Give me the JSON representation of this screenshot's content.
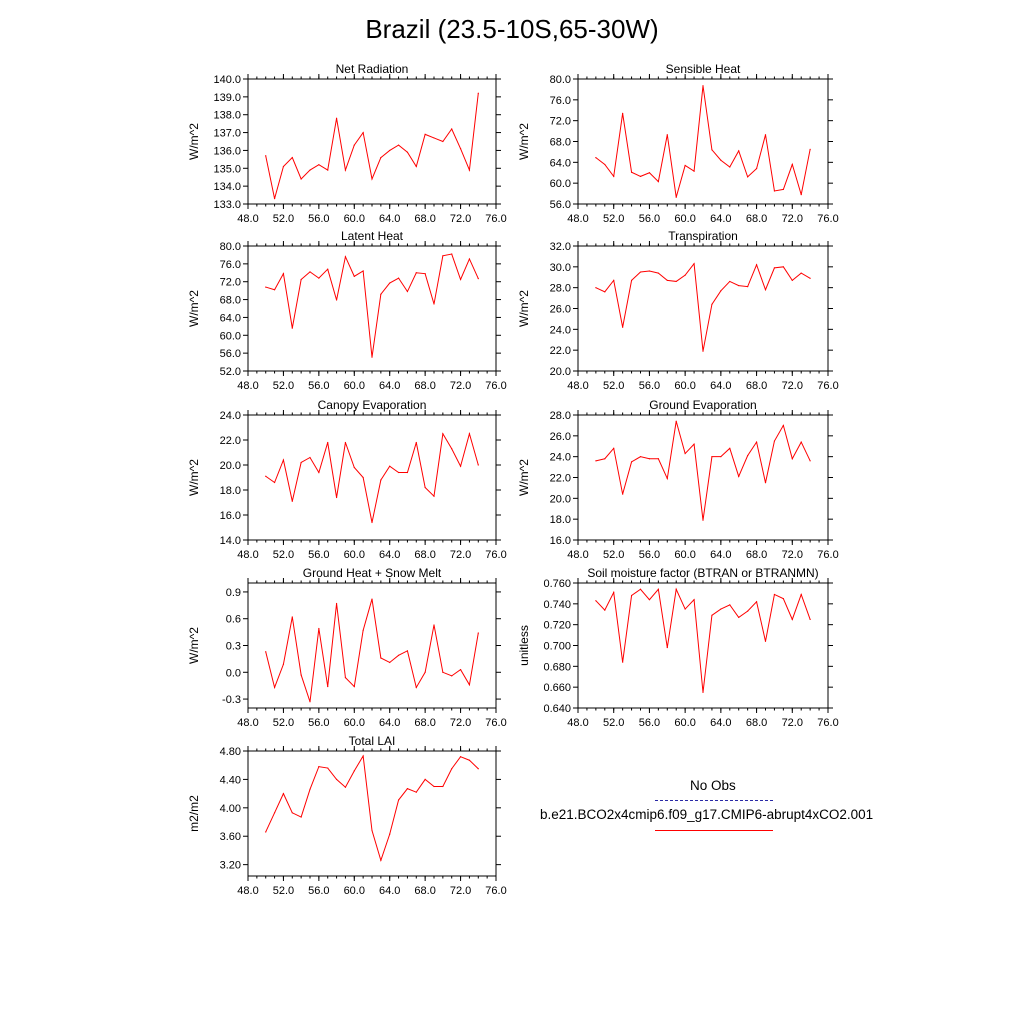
{
  "page": {
    "title": "Brazil (23.5-10S,65-30W)"
  },
  "colors": {
    "model_line": "#ff0000",
    "obs_line": "#2a2aa6",
    "axis": "#000000"
  },
  "legend": {
    "obs_label": "No Obs",
    "model_label": "b.e21.BCO2x4cmip6.f09_g17.CMIP6-abrupt4xCO2.001"
  },
  "chart_data": [
    {
      "type": "line",
      "title": "Net Radiation",
      "xlabel": "",
      "ylabel": "W/m^2",
      "xlim": [
        48,
        76
      ],
      "ylim": [
        133,
        140
      ],
      "xticks": [
        "48.0",
        "52.0",
        "56.0",
        "60.0",
        "64.0",
        "68.0",
        "72.0",
        "76.0"
      ],
      "yticks": [
        "133.0",
        "134.0",
        "135.0",
        "136.0",
        "137.0",
        "138.0",
        "139.0",
        "140.0"
      ],
      "x": [
        50,
        51,
        52,
        53,
        54,
        55,
        56,
        57,
        58,
        59,
        60,
        61,
        62,
        63,
        64,
        65,
        66,
        67,
        68,
        69,
        70,
        71,
        72,
        73,
        74
      ],
      "values": [
        135.7,
        133.3,
        135.1,
        135.6,
        134.4,
        134.9,
        135.2,
        134.9,
        137.8,
        134.9,
        136.3,
        137.0,
        134.4,
        135.6,
        136.0,
        136.3,
        135.9,
        135.1,
        136.9,
        136.7,
        136.5,
        137.2,
        136.1,
        134.9,
        139.2
      ]
    },
    {
      "type": "line",
      "title": "Sensible Heat",
      "xlabel": "",
      "ylabel": "W/m^2",
      "xlim": [
        48,
        76
      ],
      "ylim": [
        56,
        80
      ],
      "xticks": [
        "48.0",
        "52.0",
        "56.0",
        "60.0",
        "64.0",
        "68.0",
        "72.0",
        "76.0"
      ],
      "yticks": [
        "56.0",
        "60.0",
        "64.0",
        "68.0",
        "72.0",
        "76.0",
        "80.0"
      ],
      "x": [
        50,
        51,
        52,
        53,
        54,
        55,
        56,
        57,
        58,
        59,
        60,
        61,
        62,
        63,
        64,
        65,
        66,
        67,
        68,
        69,
        70,
        71,
        72,
        73,
        74
      ],
      "values": [
        64.9,
        63.6,
        61.3,
        73.4,
        62.1,
        61.3,
        62.0,
        60.3,
        69.3,
        57.3,
        63.4,
        62.3,
        78.7,
        66.4,
        64.4,
        63.1,
        66.2,
        61.2,
        62.8,
        69.3,
        58.5,
        58.8,
        63.6,
        57.8,
        66.5
      ]
    },
    {
      "type": "line",
      "title": "Latent Heat",
      "xlabel": "",
      "ylabel": "W/m^2",
      "xlim": [
        48,
        76
      ],
      "ylim": [
        52,
        80
      ],
      "xticks": [
        "48.0",
        "52.0",
        "56.0",
        "60.0",
        "64.0",
        "68.0",
        "72.0",
        "76.0"
      ],
      "yticks": [
        "52.0",
        "56.0",
        "60.0",
        "64.0",
        "68.0",
        "72.0",
        "76.0",
        "80.0"
      ],
      "x": [
        50,
        51,
        52,
        53,
        54,
        55,
        56,
        57,
        58,
        59,
        60,
        61,
        62,
        63,
        64,
        65,
        66,
        67,
        68,
        69,
        70,
        71,
        72,
        73,
        74
      ],
      "values": [
        70.8,
        70.2,
        73.8,
        61.6,
        72.5,
        74.2,
        72.8,
        74.8,
        67.9,
        77.6,
        73.2,
        74.4,
        55.1,
        69.2,
        71.7,
        72.8,
        69.8,
        74.0,
        73.8,
        67.0,
        77.8,
        78.2,
        72.5,
        77.1,
        72.7
      ]
    },
    {
      "type": "line",
      "title": "Transpiration",
      "xlabel": "",
      "ylabel": "W/m^2",
      "xlim": [
        48,
        76
      ],
      "ylim": [
        20,
        32
      ],
      "xticks": [
        "48.0",
        "52.0",
        "56.0",
        "60.0",
        "64.0",
        "68.0",
        "72.0",
        "76.0"
      ],
      "yticks": [
        "20.0",
        "22.0",
        "24.0",
        "26.0",
        "28.0",
        "30.0",
        "32.0"
      ],
      "x": [
        50,
        51,
        52,
        53,
        54,
        55,
        56,
        57,
        58,
        59,
        60,
        61,
        62,
        63,
        64,
        65,
        66,
        67,
        68,
        69,
        70,
        71,
        72,
        73,
        74
      ],
      "values": [
        28.0,
        27.6,
        28.7,
        24.2,
        28.7,
        29.5,
        29.6,
        29.4,
        28.7,
        28.6,
        29.2,
        30.3,
        21.9,
        26.4,
        27.7,
        28.6,
        28.2,
        28.1,
        30.2,
        27.8,
        29.9,
        30.0,
        28.7,
        29.4,
        28.9
      ]
    },
    {
      "type": "line",
      "title": "Canopy Evaporation",
      "xlabel": "",
      "ylabel": "W/m^2",
      "xlim": [
        48,
        76
      ],
      "ylim": [
        14,
        24
      ],
      "xticks": [
        "48.0",
        "52.0",
        "56.0",
        "60.0",
        "64.0",
        "68.0",
        "72.0",
        "76.0"
      ],
      "yticks": [
        "14.0",
        "16.0",
        "18.0",
        "20.0",
        "22.0",
        "24.0"
      ],
      "x": [
        50,
        51,
        52,
        53,
        54,
        55,
        56,
        57,
        58,
        59,
        60,
        61,
        62,
        63,
        64,
        65,
        66,
        67,
        68,
        69,
        70,
        71,
        72,
        73,
        74
      ],
      "values": [
        19.1,
        18.6,
        20.4,
        17.1,
        20.2,
        20.6,
        19.4,
        21.8,
        17.4,
        21.8,
        19.8,
        19.0,
        15.4,
        18.8,
        19.9,
        19.4,
        19.4,
        21.8,
        18.2,
        17.5,
        22.5,
        21.3,
        19.9,
        22.5,
        20.0
      ]
    },
    {
      "type": "line",
      "title": "Ground Evaporation",
      "xlabel": "",
      "ylabel": "W/m^2",
      "xlim": [
        48,
        76
      ],
      "ylim": [
        16,
        28
      ],
      "xticks": [
        "48.0",
        "52.0",
        "56.0",
        "60.0",
        "64.0",
        "68.0",
        "72.0",
        "76.0"
      ],
      "yticks": [
        "16.0",
        "18.0",
        "20.0",
        "22.0",
        "24.0",
        "26.0",
        "28.0"
      ],
      "x": [
        50,
        51,
        52,
        53,
        54,
        55,
        56,
        57,
        58,
        59,
        60,
        61,
        62,
        63,
        64,
        65,
        66,
        67,
        68,
        69,
        70,
        71,
        72,
        73,
        74
      ],
      "values": [
        23.6,
        23.8,
        24.8,
        20.4,
        23.5,
        24.0,
        23.8,
        23.8,
        21.9,
        27.4,
        24.3,
        25.2,
        17.9,
        24.0,
        24.0,
        24.8,
        22.1,
        24.1,
        25.4,
        21.5,
        25.5,
        27.0,
        23.8,
        25.4,
        23.6
      ]
    },
    {
      "type": "line",
      "title": "Ground Heat + Snow Melt",
      "xlabel": "",
      "ylabel": "W/m^2",
      "xlim": [
        48,
        76
      ],
      "ylim": [
        -0.4,
        1.0
      ],
      "xticks": [
        "48.0",
        "52.0",
        "56.0",
        "60.0",
        "64.0",
        "68.0",
        "72.0",
        "76.0"
      ],
      "yticks": [
        "-0.3",
        "0.0",
        "0.3",
        "0.6",
        "0.9"
      ],
      "ytick_values": [
        -0.3,
        0.0,
        0.3,
        0.6,
        0.9
      ],
      "x": [
        50,
        51,
        52,
        53,
        54,
        55,
        56,
        57,
        58,
        59,
        60,
        61,
        62,
        63,
        64,
        65,
        66,
        67,
        68,
        69,
        70,
        71,
        72,
        73,
        74
      ],
      "values": [
        0.23,
        -0.17,
        0.09,
        0.62,
        -0.03,
        -0.33,
        0.49,
        -0.16,
        0.77,
        -0.06,
        -0.16,
        0.47,
        0.82,
        0.16,
        0.11,
        0.19,
        0.24,
        -0.17,
        0.0,
        0.53,
        0.0,
        -0.04,
        0.03,
        -0.14,
        0.44
      ]
    },
    {
      "type": "line",
      "title": "Soil moisture factor (BTRAN or BTRANMN)",
      "xlabel": "",
      "ylabel": "unitless",
      "xlim": [
        48,
        76
      ],
      "ylim": [
        0.64,
        0.76
      ],
      "xticks": [
        "48.0",
        "52.0",
        "56.0",
        "60.0",
        "64.0",
        "68.0",
        "72.0",
        "76.0"
      ],
      "yticks": [
        "0.640",
        "0.660",
        "0.680",
        "0.700",
        "0.720",
        "0.740",
        "0.760"
      ],
      "x": [
        50,
        51,
        52,
        53,
        54,
        55,
        56,
        57,
        58,
        59,
        60,
        61,
        62,
        63,
        64,
        65,
        66,
        67,
        68,
        69,
        70,
        71,
        72,
        73,
        74
      ],
      "values": [
        0.743,
        0.734,
        0.751,
        0.684,
        0.748,
        0.754,
        0.744,
        0.754,
        0.698,
        0.754,
        0.735,
        0.744,
        0.655,
        0.729,
        0.735,
        0.739,
        0.727,
        0.733,
        0.742,
        0.704,
        0.749,
        0.745,
        0.725,
        0.749,
        0.725
      ]
    },
    {
      "type": "line",
      "title": "Total LAI",
      "xlabel": "",
      "ylabel": "m2/m2",
      "xlim": [
        48,
        76
      ],
      "ylim": [
        3.04,
        4.8
      ],
      "xticks": [
        "48.0",
        "52.0",
        "56.0",
        "60.0",
        "64.0",
        "68.0",
        "72.0",
        "76.0"
      ],
      "yticks": [
        "3.20",
        "3.60",
        "4.00",
        "4.40",
        "4.80"
      ],
      "ytick_values": [
        3.2,
        3.6,
        4.0,
        4.4,
        4.8
      ],
      "x": [
        50,
        51,
        52,
        53,
        54,
        55,
        56,
        57,
        58,
        59,
        60,
        61,
        62,
        63,
        64,
        65,
        66,
        67,
        68,
        69,
        70,
        71,
        72,
        73,
        74
      ],
      "values": [
        3.66,
        3.93,
        4.2,
        3.93,
        3.87,
        4.26,
        4.58,
        4.56,
        4.4,
        4.29,
        4.52,
        4.73,
        3.68,
        3.26,
        3.63,
        4.11,
        4.27,
        4.22,
        4.4,
        4.3,
        4.3,
        4.55,
        4.72,
        4.67,
        4.55
      ]
    }
  ]
}
